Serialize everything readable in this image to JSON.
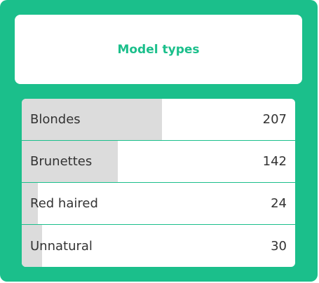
{
  "title": "Model types",
  "rows": [
    {
      "label": "Blondes",
      "value": 207
    },
    {
      "label": "Brunettes",
      "value": 142
    },
    {
      "label": "Red haired",
      "value": 24
    },
    {
      "label": "Unnatural",
      "value": 30
    }
  ]
}
